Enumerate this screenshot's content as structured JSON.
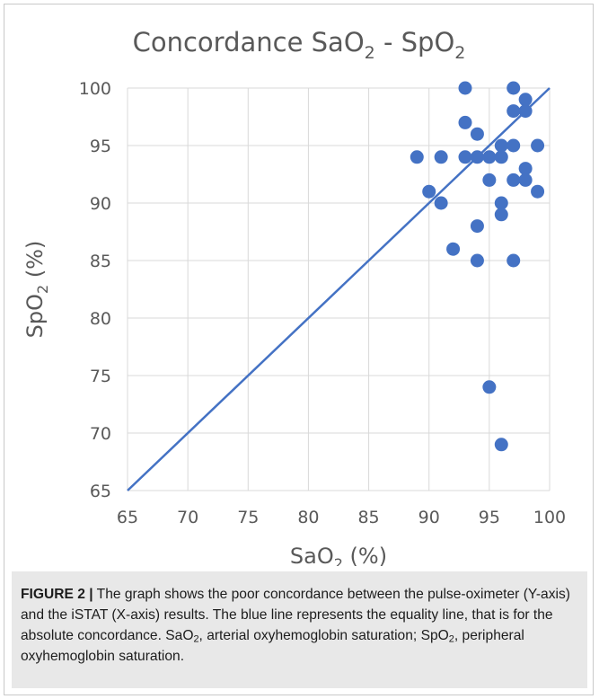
{
  "chart_data": {
    "type": "scatter",
    "title_parts": {
      "a": "Concordance SaO",
      "sub1": "2",
      "b": " - SpO",
      "sub2": "2"
    },
    "xlabel_parts": {
      "a": "SaO",
      "sub": "2",
      "b": " (%)"
    },
    "ylabel_parts": {
      "a": "SpO",
      "sub": "2",
      "b": " (%)"
    },
    "xlim": [
      65,
      100
    ],
    "ylim": [
      65,
      100
    ],
    "xticks": [
      65,
      70,
      75,
      80,
      85,
      90,
      95,
      100
    ],
    "yticks": [
      65,
      70,
      75,
      80,
      85,
      90,
      95,
      100
    ],
    "grid": true,
    "point_color": "#4472c4",
    "line_color": "#4472c4",
    "equality_line": {
      "from": [
        65,
        65
      ],
      "to": [
        100,
        100
      ]
    },
    "points": [
      {
        "x": 89,
        "y": 94
      },
      {
        "x": 90,
        "y": 91
      },
      {
        "x": 91,
        "y": 94
      },
      {
        "x": 91,
        "y": 90
      },
      {
        "x": 92,
        "y": 86
      },
      {
        "x": 93,
        "y": 100
      },
      {
        "x": 93,
        "y": 97
      },
      {
        "x": 93,
        "y": 94
      },
      {
        "x": 94,
        "y": 96
      },
      {
        "x": 94,
        "y": 94
      },
      {
        "x": 94,
        "y": 88
      },
      {
        "x": 94,
        "y": 85
      },
      {
        "x": 95,
        "y": 94
      },
      {
        "x": 95,
        "y": 92
      },
      {
        "x": 95,
        "y": 74
      },
      {
        "x": 96,
        "y": 95
      },
      {
        "x": 96,
        "y": 94
      },
      {
        "x": 96,
        "y": 90
      },
      {
        "x": 96,
        "y": 89
      },
      {
        "x": 96,
        "y": 69
      },
      {
        "x": 97,
        "y": 100
      },
      {
        "x": 97,
        "y": 98
      },
      {
        "x": 97,
        "y": 95
      },
      {
        "x": 97,
        "y": 92
      },
      {
        "x": 97,
        "y": 85
      },
      {
        "x": 98,
        "y": 99
      },
      {
        "x": 98,
        "y": 98
      },
      {
        "x": 98,
        "y": 93
      },
      {
        "x": 98,
        "y": 92
      },
      {
        "x": 99,
        "y": 95
      },
      {
        "x": 99,
        "y": 91
      }
    ]
  },
  "caption": {
    "label": "FIGURE 2 |",
    "text1": " The graph shows the poor concordance between the pulse-oximeter (Y-axis) and the iSTAT (X-axis) results. The blue line represents the equality line, that is for the absolute concordance. SaO",
    "sub1": "2",
    "text2": ", arterial oxyhemoglobin saturation; SpO",
    "sub2": "2",
    "text3": ", peripheral oxyhemoglobin saturation."
  }
}
